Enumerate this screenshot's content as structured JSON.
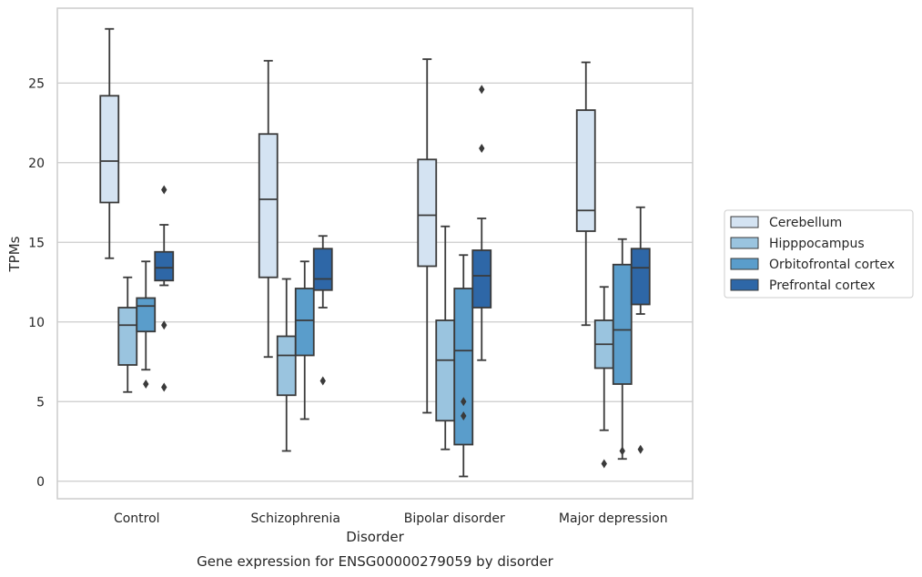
{
  "chart_data": {
    "type": "box",
    "title": "",
    "caption": "Gene expression for ENSG00000279059 by disorder",
    "xlabel": "Disorder",
    "ylabel": "TPMs",
    "ylim": [
      -1.1,
      29.7
    ],
    "yticks": [
      0,
      5,
      10,
      15,
      20,
      25
    ],
    "grid": "horizontal",
    "legend_position": "right",
    "categories": [
      "Control",
      "Schizophrenia",
      "Bipolar disorder",
      "Major depression"
    ],
    "series": [
      {
        "name": "Cerebellum",
        "color": "#d4e3f2",
        "boxes": [
          {
            "whisker_low": 14.0,
            "q1": 17.5,
            "median": 20.1,
            "q3": 24.2,
            "whisker_high": 28.4,
            "outliers": []
          },
          {
            "whisker_low": 7.8,
            "q1": 12.8,
            "median": 17.7,
            "q3": 21.8,
            "whisker_high": 26.4,
            "outliers": []
          },
          {
            "whisker_low": 4.3,
            "q1": 13.5,
            "median": 16.7,
            "q3": 20.2,
            "whisker_high": 26.5,
            "outliers": []
          },
          {
            "whisker_low": 9.8,
            "q1": 15.7,
            "median": 17.0,
            "q3": 23.3,
            "whisker_high": 26.3,
            "outliers": []
          }
        ]
      },
      {
        "name": "Hipppocampus",
        "color": "#9ac4df",
        "boxes": [
          {
            "whisker_low": 5.6,
            "q1": 7.3,
            "median": 9.8,
            "q3": 10.9,
            "whisker_high": 12.8,
            "outliers": []
          },
          {
            "whisker_low": 1.9,
            "q1": 5.4,
            "median": 7.9,
            "q3": 9.1,
            "whisker_high": 12.7,
            "outliers": []
          },
          {
            "whisker_low": 2.0,
            "q1": 3.8,
            "median": 7.6,
            "q3": 10.1,
            "whisker_high": 16.0,
            "outliers": []
          },
          {
            "whisker_low": 3.2,
            "q1": 7.1,
            "median": 8.6,
            "q3": 10.1,
            "whisker_high": 12.2,
            "outliers": [
              1.1
            ]
          }
        ]
      },
      {
        "name": "Orbitofrontal cortex",
        "color": "#5a9dcb",
        "boxes": [
          {
            "whisker_low": 7.0,
            "q1": 9.4,
            "median": 11.0,
            "q3": 11.5,
            "whisker_high": 13.8,
            "outliers": [
              6.1
            ]
          },
          {
            "whisker_low": 3.9,
            "q1": 7.9,
            "median": 10.1,
            "q3": 12.1,
            "whisker_high": 13.8,
            "outliers": []
          },
          {
            "whisker_low": 0.3,
            "q1": 2.3,
            "median": 8.2,
            "q3": 12.1,
            "whisker_high": 14.2,
            "outliers": [
              5.0,
              4.1
            ]
          },
          {
            "whisker_low": 1.4,
            "q1": 6.1,
            "median": 9.5,
            "q3": 13.6,
            "whisker_high": 15.2,
            "outliers": [
              1.9
            ]
          }
        ]
      },
      {
        "name": "Prefrontal cortex",
        "color": "#2e67a7",
        "boxes": [
          {
            "whisker_low": 12.3,
            "q1": 12.6,
            "median": 13.4,
            "q3": 14.4,
            "whisker_high": 16.1,
            "outliers": [
              18.3,
              9.8,
              5.9
            ]
          },
          {
            "whisker_low": 10.9,
            "q1": 12.0,
            "median": 12.7,
            "q3": 14.6,
            "whisker_high": 15.4,
            "outliers": [
              6.3
            ]
          },
          {
            "whisker_low": 7.6,
            "q1": 10.9,
            "median": 12.9,
            "q3": 14.5,
            "whisker_high": 16.5,
            "outliers": [
              24.6,
              20.9
            ]
          },
          {
            "whisker_low": 10.5,
            "q1": 11.1,
            "median": 13.4,
            "q3": 14.6,
            "whisker_high": 17.2,
            "outliers": [
              2.0
            ]
          }
        ]
      }
    ]
  }
}
